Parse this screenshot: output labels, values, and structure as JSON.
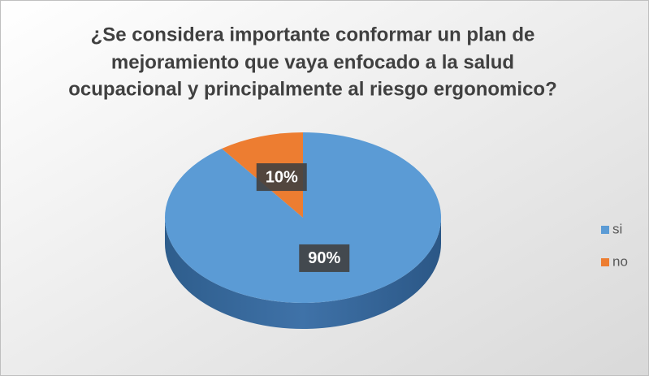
{
  "chart_data": {
    "type": "pie",
    "title": [
      "¿Se considera importante conformar un plan de",
      "mejoramiento que vaya enfocado a la salud",
      "ocupacional y principalmente al riesgo ergonomico?"
    ],
    "categories": [
      "si",
      "no"
    ],
    "values": [
      90,
      10
    ],
    "value_labels": [
      "90%",
      "10%"
    ],
    "colors": [
      "#5b9bd5",
      "#ed7d31"
    ],
    "legend": "right"
  }
}
